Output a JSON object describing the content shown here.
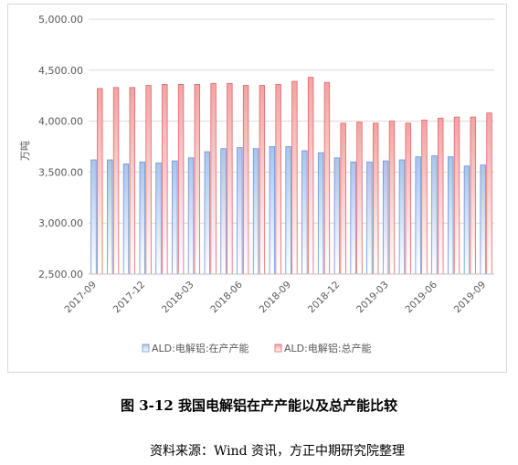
{
  "chart_data": {
    "type": "bar",
    "ylabel": "万吨",
    "ylim": [
      2500,
      5000
    ],
    "yticks": [
      "2,500.00",
      "3,000.00",
      "3,500.00",
      "4,000.00",
      "4,500.00",
      "5,000.00"
    ],
    "ytick_values": [
      2500,
      3000,
      3500,
      4000,
      4500,
      5000
    ],
    "grid": true,
    "legend_position": "bottom",
    "categories": [
      "2017-09",
      "2017-10",
      "2017-11",
      "2017-12",
      "2018-01",
      "2018-02",
      "2018-03",
      "2018-04",
      "2018-05",
      "2018-06",
      "2018-07",
      "2018-08",
      "2018-09",
      "2018-10",
      "2018-11",
      "2018-12",
      "2019-01",
      "2019-02",
      "2019-03",
      "2019-04",
      "2019-05",
      "2019-06",
      "2019-07",
      "2019-08",
      "2019-09"
    ],
    "xtick_labels": [
      "2017-09",
      "2017-12",
      "2018-03",
      "2018-06",
      "2018-09",
      "2018-12",
      "2019-03",
      "2019-06",
      "2019-09"
    ],
    "xtick_index": [
      0,
      3,
      6,
      9,
      12,
      15,
      18,
      21,
      24
    ],
    "series": [
      {
        "name": "ALD:电解铝:在产产能",
        "color": "#a9c4ea",
        "values": [
          3620,
          3620,
          3580,
          3600,
          3590,
          3610,
          3640,
          3700,
          3730,
          3740,
          3730,
          3750,
          3750,
          3710,
          3690,
          3640,
          3600,
          3600,
          3610,
          3620,
          3650,
          3660,
          3650,
          3560,
          3570
        ]
      },
      {
        "name": "ALD:电解铝:总产能",
        "color": "#f4a3a3",
        "values": [
          4320,
          4330,
          4330,
          4350,
          4360,
          4360,
          4360,
          4370,
          4370,
          4350,
          4350,
          4360,
          4390,
          4430,
          4380,
          3980,
          3990,
          3980,
          4000,
          3980,
          4010,
          4030,
          4040,
          4040,
          4080
        ]
      }
    ]
  },
  "captions": {
    "figure": "图 3-12  我国电解铝在产产能以及总产能比较",
    "source": "资料来源：Wind 资讯，方正中期研究院整理"
  }
}
